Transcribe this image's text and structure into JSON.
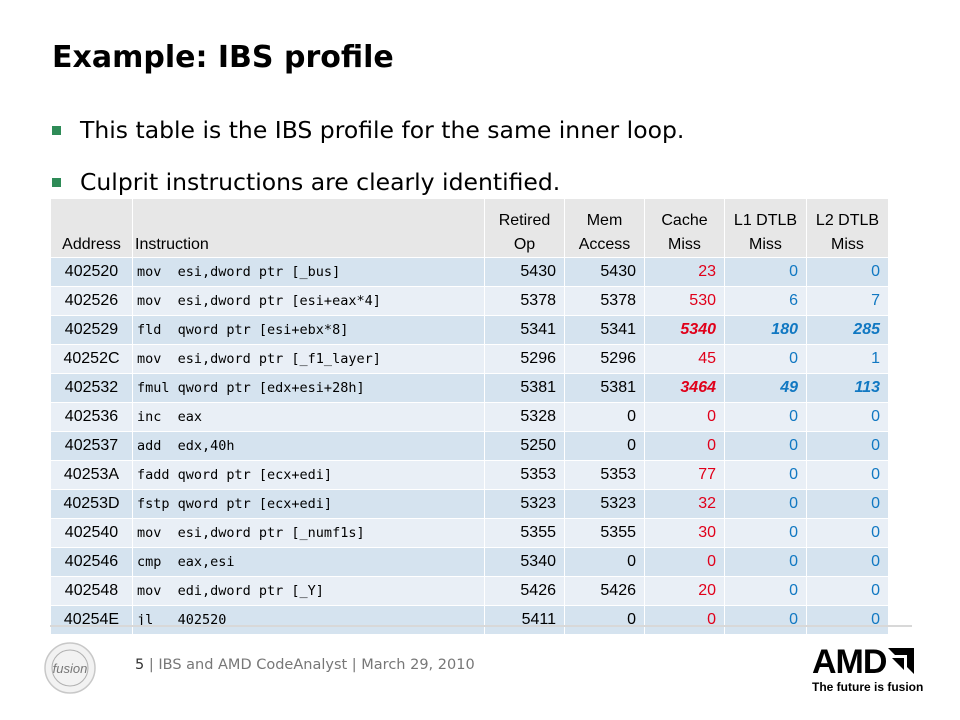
{
  "title": "Example: IBS profile",
  "bullets": [
    "This table is the IBS profile for the same inner loop.",
    "Culprit instructions are clearly identified."
  ],
  "table": {
    "headers": [
      "Address",
      "Instruction",
      "Retired Op",
      "Mem Access",
      "Cache Miss",
      "L1 DTLB Miss",
      "L2 DTLB Miss"
    ],
    "header_lines": [
      [
        "Address"
      ],
      [
        "Instruction"
      ],
      [
        "Retired",
        "Op"
      ],
      [
        "Mem",
        "Access"
      ],
      [
        "Cache",
        "Miss"
      ],
      [
        "L1 DTLB",
        "Miss"
      ],
      [
        "L2 DTLB",
        "Miss"
      ]
    ],
    "rows": [
      [
        "402520",
        "mov  esi,dword ptr [_bus]",
        "5430",
        "5430",
        "23",
        "0",
        "0"
      ],
      [
        "402526",
        "mov  esi,dword ptr [esi+eax*4]",
        "5378",
        "5378",
        "530",
        "6",
        "7"
      ],
      [
        "402529",
        "fld  qword ptr [esi+ebx*8]",
        "5341",
        "5341",
        "5340",
        "180",
        "285"
      ],
      [
        "40252C",
        "mov  esi,dword ptr [_f1_layer]",
        "5296",
        "5296",
        "45",
        "0",
        "1"
      ],
      [
        "402532",
        "fmul qword ptr [edx+esi+28h]",
        "5381",
        "5381",
        "3464",
        "49",
        "113"
      ],
      [
        "402536",
        "inc  eax",
        "5328",
        "0",
        "0",
        "0",
        "0"
      ],
      [
        "402537",
        "add  edx,40h",
        "5250",
        "0",
        "0",
        "0",
        "0"
      ],
      [
        "40253A",
        "fadd qword ptr [ecx+edi]",
        "5353",
        "5353",
        "77",
        "0",
        "0"
      ],
      [
        "40253D",
        "fstp qword ptr [ecx+edi]",
        "5323",
        "5323",
        "32",
        "0",
        "0"
      ],
      [
        "402540",
        "mov  esi,dword ptr [_numf1s]",
        "5355",
        "5355",
        "30",
        "0",
        "0"
      ],
      [
        "402546",
        "cmp  eax,esi",
        "5340",
        "0",
        "0",
        "0",
        "0"
      ],
      [
        "402548",
        "mov  edi,dword ptr [_Y]",
        "5426",
        "5426",
        "20",
        "0",
        "0"
      ],
      [
        "40254E",
        "jl   402520",
        "5411",
        "0",
        "0",
        "0",
        "0"
      ]
    ],
    "highlight_rows": [
      2,
      4
    ],
    "colors": {
      "cache_miss": "#e0001a",
      "dtlb_miss": "#1178c2",
      "row_odd": "#d5e3ef",
      "row_even": "#e9eff6",
      "header": "#e7e7e7"
    }
  },
  "footer": {
    "page": "5",
    "separator": "|",
    "text": "IBS and AMD CodeAnalyst | March 29, 2010"
  },
  "logos": {
    "fusion_icon": "fusion-logo-icon",
    "fusion_text": "fusion",
    "amd_word": "AMD",
    "amd_tagline": "The future is fusion",
    "amd_icon": "amd-arrow-icon"
  },
  "accent_color": "#2e8b57"
}
